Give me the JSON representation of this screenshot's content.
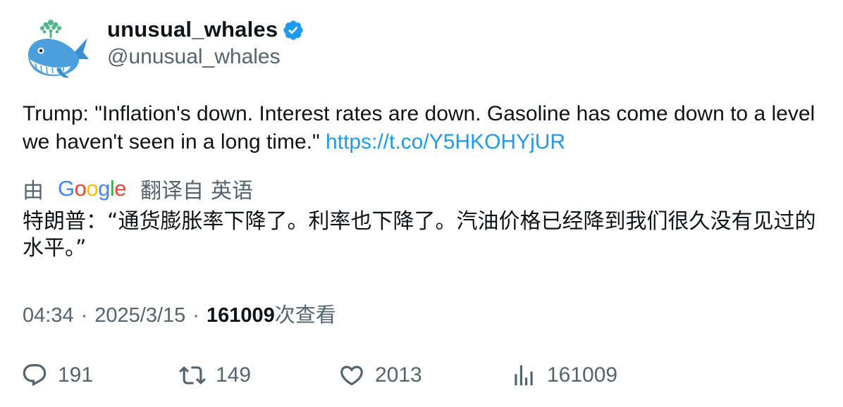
{
  "author": {
    "display_name": "unusual_whales",
    "handle": "@unusual_whales",
    "verified_color": "#1d9bf0"
  },
  "tweet": {
    "text": "Trump: \"Inflation's down. Interest rates are down. Gasoline has come down to a level we haven't seen in a long time.\" ",
    "link": "https://t.co/Y5HKOHYjUR"
  },
  "translation": {
    "by_label": "由",
    "provider_letters": [
      "G",
      "o",
      "o",
      "g",
      "l",
      "e"
    ],
    "translated_from_label": "翻译自",
    "source_language": "英语",
    "translated_text": "特朗普：“通货膨胀率下降了。利率也下降了。汽油价格已经降到我们很久没有见过的水平。”"
  },
  "meta": {
    "time": "04:34",
    "date": "2025/3/15",
    "views_count": "161009",
    "views_label": "次查看"
  },
  "actions": {
    "reply_count": "191",
    "retweet_count": "149",
    "like_count": "2013",
    "views_count": "161009"
  }
}
